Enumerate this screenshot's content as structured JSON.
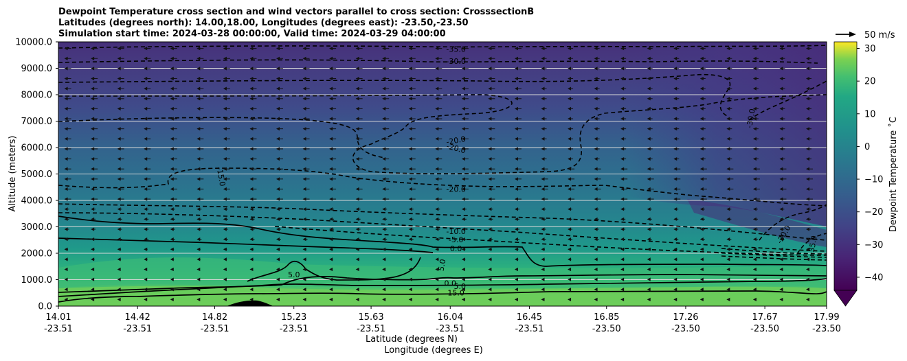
{
  "chart_data": {
    "type": "heatmap",
    "title_lines": [
      "Dewpoint Temperature cross section and wind vectors parallel to cross section: CrosssectionB",
      "Latitudes (degrees north): 14.00,18.00, Longitudes (degrees east): -23.50,-23.50",
      "Simulation start time: 2024-03-28 00:00:00, Valid time: 2024-03-29 04:00:00"
    ],
    "ylabel": "Altitude (meters)",
    "xlabel_lat": "Latitude (degrees N)",
    "xlabel_lon": "Longitude (degrees E)",
    "ylim": [
      0,
      10000
    ],
    "yticks": [
      "0.0",
      "1000.0",
      "2000.0",
      "3000.0",
      "4000.0",
      "5000.0",
      "6000.0",
      "7000.0",
      "8000.0",
      "9000.0",
      "10000.0"
    ],
    "xlim": [
      14.01,
      17.99
    ],
    "xticks": [
      {
        "lat": "14.01",
        "lon": "-23.51"
      },
      {
        "lat": "14.42",
        "lon": "-23.51"
      },
      {
        "lat": "14.82",
        "lon": "-23.51"
      },
      {
        "lat": "15.23",
        "lon": "-23.51"
      },
      {
        "lat": "15.63",
        "lon": "-23.51"
      },
      {
        "lat": "16.04",
        "lon": "-23.51"
      },
      {
        "lat": "16.45",
        "lon": "-23.51"
      },
      {
        "lat": "16.85",
        "lon": "-23.50"
      },
      {
        "lat": "17.26",
        "lon": "-23.50"
      },
      {
        "lat": "17.67",
        "lon": "-23.50"
      },
      {
        "lat": "17.99",
        "lon": "-23.50"
      }
    ],
    "grid": "horizontal",
    "colorbar": {
      "label": "Dewpoint Temperature ˚C",
      "range": [
        -44,
        32
      ],
      "ticks": [
        "30",
        "20",
        "10",
        "0",
        "−10",
        "−20",
        "−30",
        "−40"
      ],
      "colormap": "viridis"
    },
    "quiver_key": "50 m/s",
    "contour_labels": [
      {
        "text": "-35.0",
        "lat": 16.07,
        "alt": 9700
      },
      {
        "text": "-30.0",
        "lat": 16.07,
        "alt": 9250
      },
      {
        "text": "-30.0",
        "lat": 17.6,
        "alt": 7100,
        "angle": -80
      },
      {
        "text": "-20.0",
        "lat": 16.07,
        "alt": 6250,
        "angle": -10
      },
      {
        "text": "-20.0",
        "lat": 16.07,
        "alt": 5950,
        "angle": 15
      },
      {
        "text": "-20.0",
        "lat": 16.07,
        "alt": 4400
      },
      {
        "text": "-15.0",
        "lat": 14.85,
        "alt": 4900,
        "angle": 80
      },
      {
        "text": "-10.0",
        "lat": 16.07,
        "alt": 2800
      },
      {
        "text": "-5.0",
        "lat": 16.07,
        "alt": 2500
      },
      {
        "text": "-30.0",
        "lat": 17.77,
        "alt": 2700,
        "angle": -60
      },
      {
        "text": "-35.0",
        "lat": 17.92,
        "alt": 2300,
        "angle": -80
      },
      {
        "text": "0.0",
        "lat": 16.07,
        "alt": 2150
      },
      {
        "text": "5.0",
        "lat": 16.0,
        "alt": 1550,
        "angle": -80
      },
      {
        "text": "5.0",
        "lat": 15.23,
        "alt": 1170
      },
      {
        "text": "0.0",
        "lat": 16.04,
        "alt": 850
      },
      {
        "text": "5.0",
        "lat": 16.09,
        "alt": 730
      },
      {
        "text": "15.0",
        "lat": 16.07,
        "alt": 480
      }
    ],
    "colors": {
      "dark_top": "#46307a",
      "mid": "#3a5c8c",
      "teal": "#2a8f8a",
      "green": "#35b779",
      "low_green": "#6cce59"
    }
  }
}
